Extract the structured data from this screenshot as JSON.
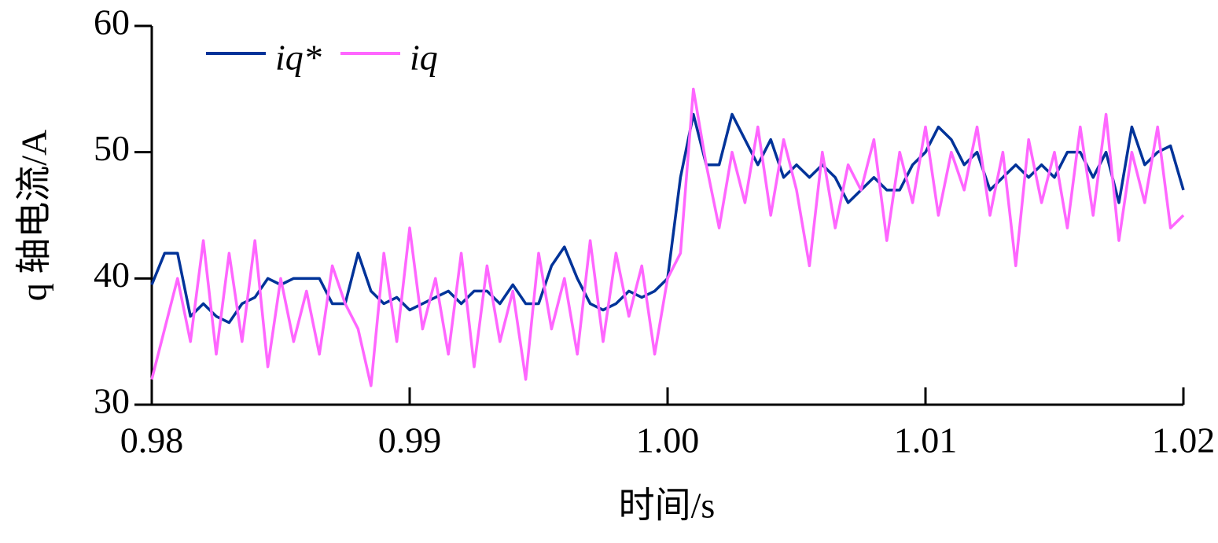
{
  "chart_data": {
    "type": "line",
    "xlabel": "时间/s",
    "ylabel": "q 轴电流/A",
    "x": [
      0.98,
      0.9805,
      0.981,
      0.9815,
      0.982,
      0.9825,
      0.983,
      0.9835,
      0.984,
      0.9845,
      0.985,
      0.9855,
      0.986,
      0.9865,
      0.987,
      0.9875,
      0.988,
      0.9885,
      0.989,
      0.9895,
      0.99,
      0.9905,
      0.991,
      0.9915,
      0.992,
      0.9925,
      0.993,
      0.9935,
      0.994,
      0.9945,
      0.995,
      0.9955,
      0.996,
      0.9965,
      0.997,
      0.9975,
      0.998,
      0.9985,
      0.999,
      0.9995,
      1.0,
      1.0005,
      1.001,
      1.0015,
      1.002,
      1.0025,
      1.003,
      1.0035,
      1.004,
      1.0045,
      1.005,
      1.0055,
      1.006,
      1.0065,
      1.007,
      1.0075,
      1.008,
      1.0085,
      1.009,
      1.0095,
      1.01,
      1.0105,
      1.011,
      1.0115,
      1.012,
      1.0125,
      1.013,
      1.0135,
      1.014,
      1.0145,
      1.015,
      1.0155,
      1.016,
      1.0165,
      1.017,
      1.0175,
      1.018,
      1.0185,
      1.019,
      1.0195,
      1.02
    ],
    "series": [
      {
        "name": "iq*",
        "color": "#003399",
        "values": [
          39.5,
          42,
          42,
          37,
          38,
          37,
          36.5,
          38,
          38.5,
          40,
          39.5,
          40,
          40,
          40,
          38,
          38,
          42,
          39,
          38,
          38.5,
          37.5,
          38,
          38.5,
          39,
          38,
          39,
          39,
          38,
          39.5,
          38,
          38,
          41,
          42.5,
          40,
          38,
          37.5,
          38,
          39,
          38.5,
          39,
          40,
          48,
          53,
          49,
          49,
          53,
          51,
          49,
          51,
          48,
          49,
          48,
          49,
          48,
          46,
          47,
          48,
          47,
          47,
          49,
          50,
          52,
          51,
          49,
          50,
          47,
          48,
          49,
          48,
          49,
          48,
          50,
          50,
          48,
          50,
          46,
          52,
          49,
          50,
          50.5,
          47
        ]
      },
      {
        "name": "iq",
        "color": "#ff66ff",
        "values": [
          32,
          36,
          40,
          35,
          43,
          34,
          42,
          35,
          43,
          33,
          40,
          35,
          39,
          34,
          41,
          38,
          36,
          31.5,
          42,
          35,
          44,
          36,
          40,
          34,
          42,
          33,
          41,
          35,
          39,
          32,
          42,
          36,
          40,
          34,
          43,
          35,
          42,
          37,
          41,
          34,
          40,
          42,
          55,
          49,
          44,
          50,
          46,
          52,
          45,
          51,
          47,
          41,
          50,
          44,
          49,
          47,
          51,
          43,
          50,
          46,
          52,
          45,
          50,
          47,
          52,
          45,
          50,
          41,
          51,
          46,
          50,
          44,
          52,
          45,
          53,
          43,
          50,
          46,
          52,
          44,
          45
        ]
      }
    ],
    "xlim": [
      0.98,
      1.02
    ],
    "xticks": [
      0.98,
      0.99,
      {
        "value": 1.0,
        "label": "1.00"
      },
      1.01,
      1.02
    ],
    "ylim": [
      30,
      60
    ],
    "yticks": [
      30,
      40,
      50,
      60
    ]
  }
}
